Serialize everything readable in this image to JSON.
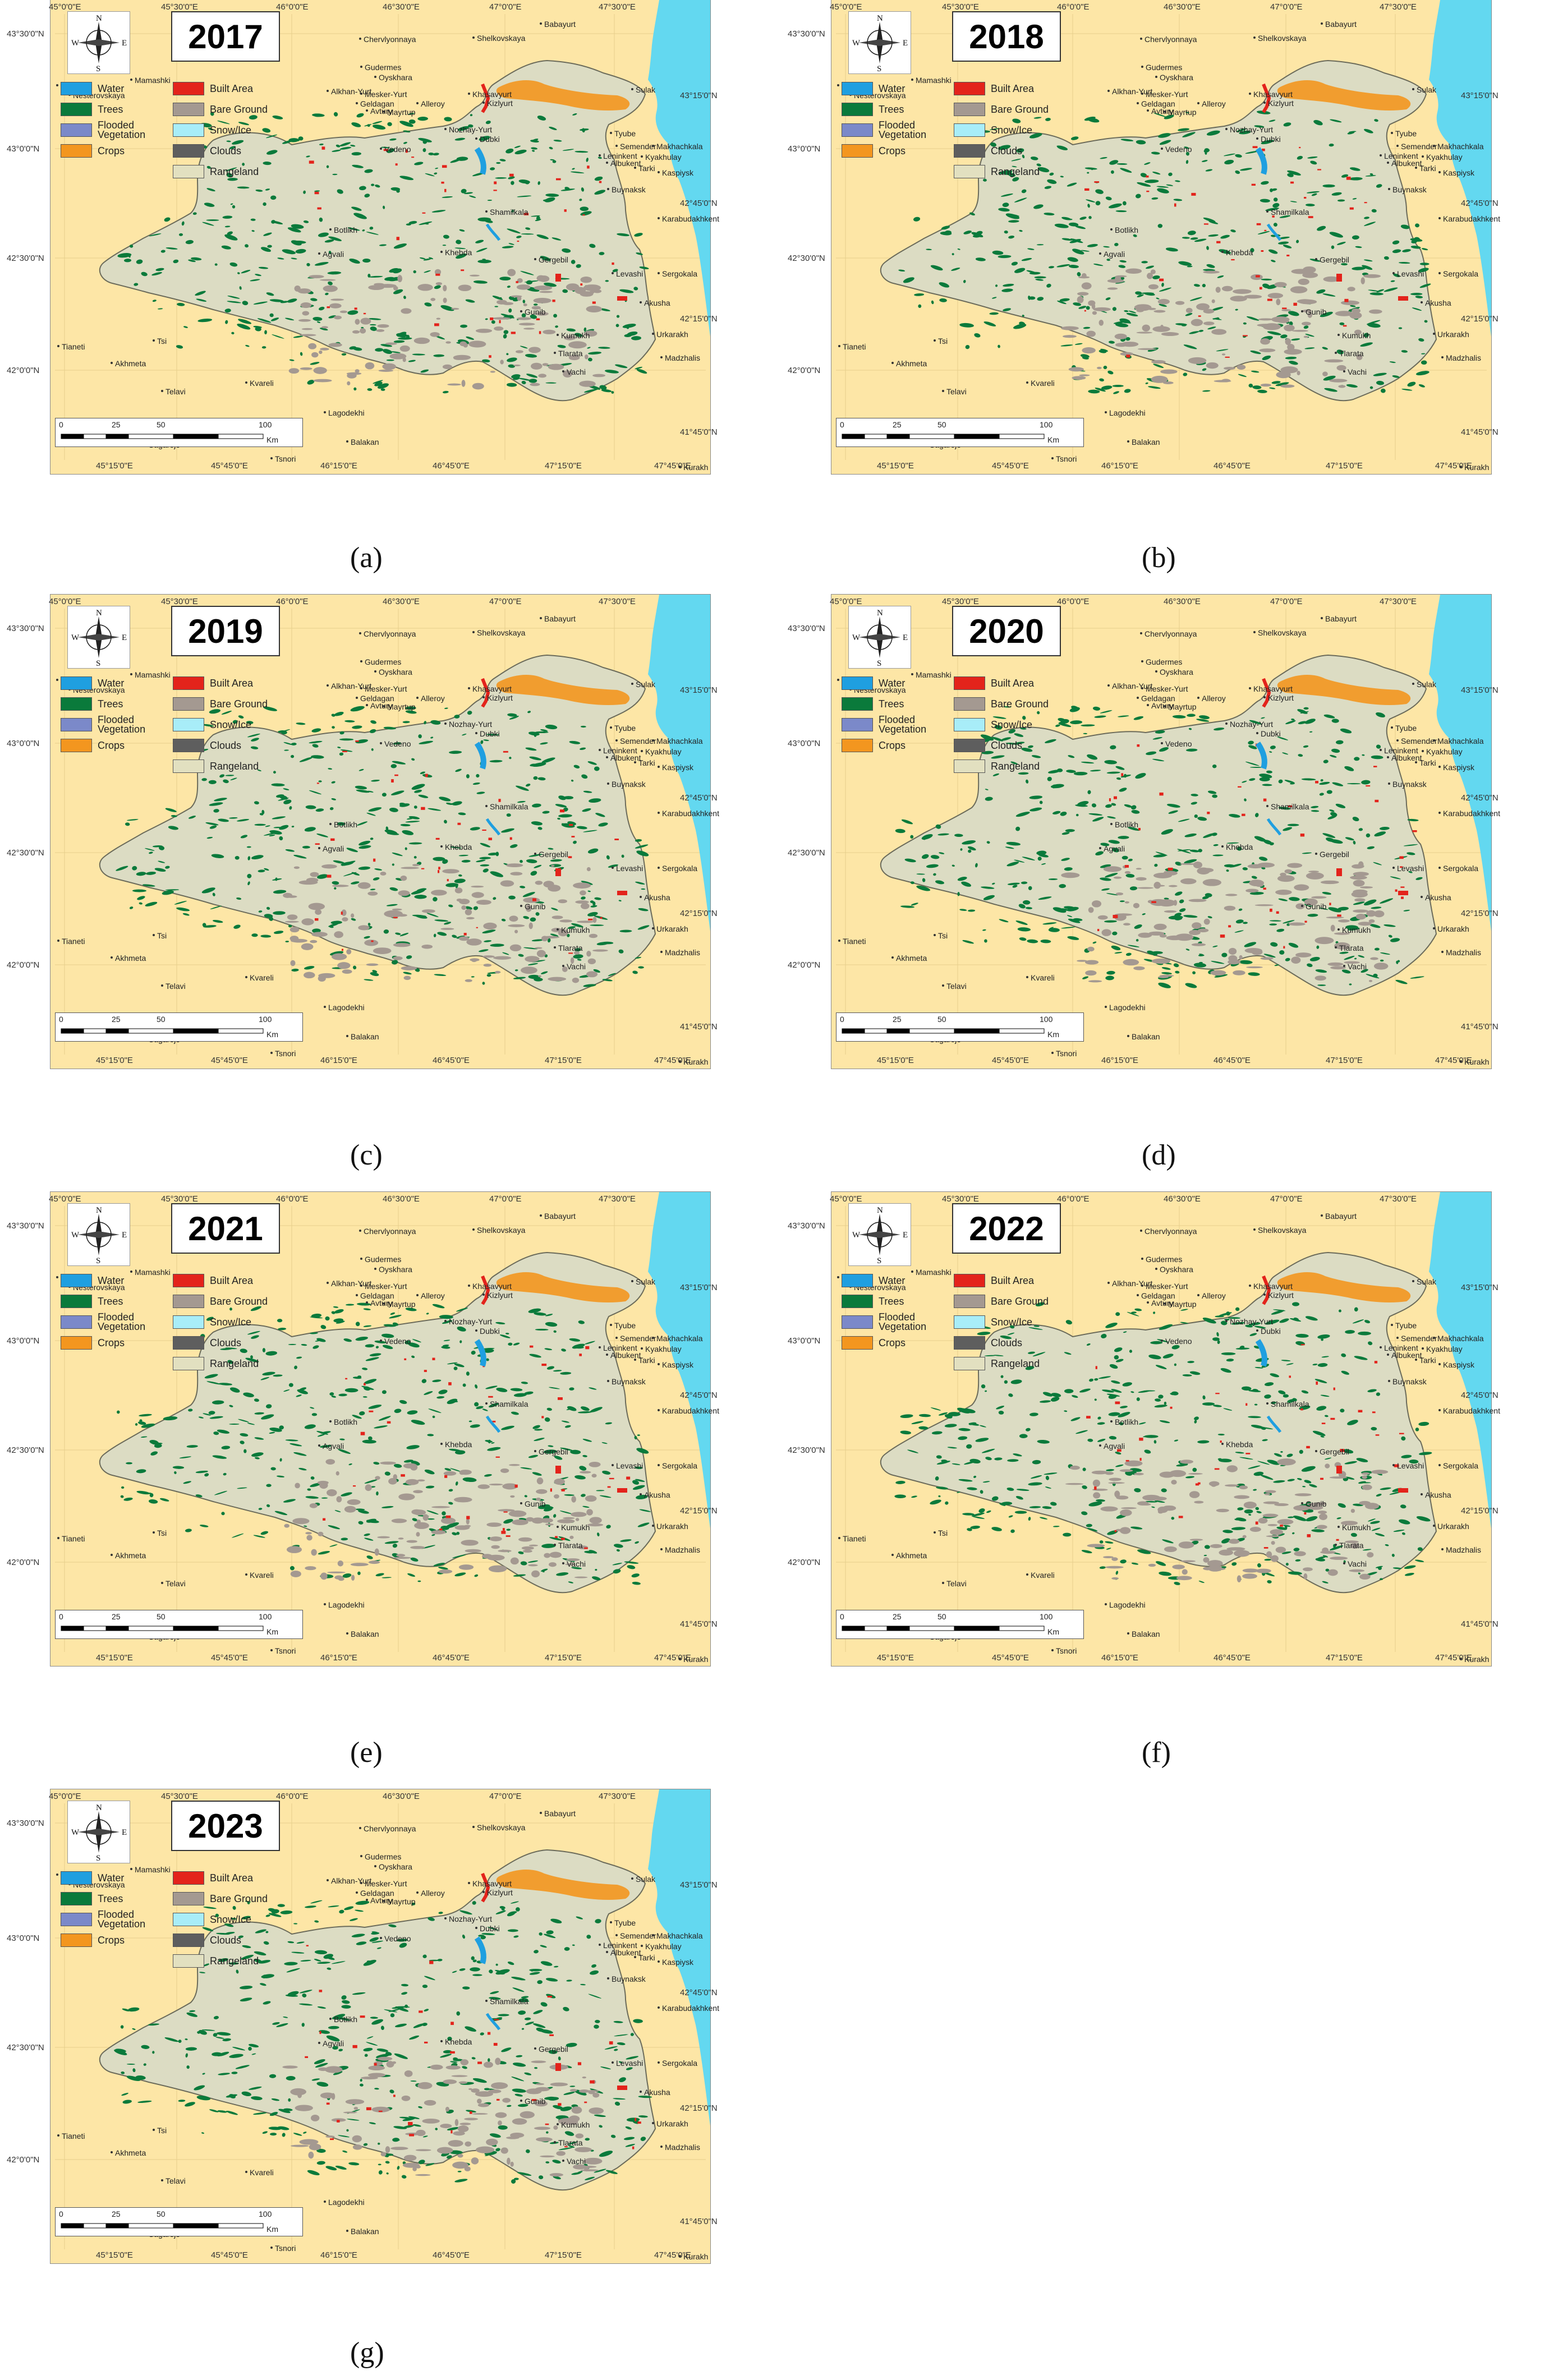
{
  "legend": [
    {
      "label": "Water",
      "color": "#1f9fe0"
    },
    {
      "label": "Trees",
      "color": "#0a7a3b"
    },
    {
      "label": "Flooded\nVegetation",
      "color": "#7b89c9"
    },
    {
      "label": "Crops",
      "color": "#f3961f"
    },
    {
      "label": "Built Area",
      "color": "#e3231b"
    },
    {
      "label": "Bare Ground",
      "color": "#a49991"
    },
    {
      "label": "Snow/Ice",
      "color": "#a8edf8"
    },
    {
      "label": "Clouds",
      "color": "#5e5e5e"
    },
    {
      "label": "Rangeland",
      "color": "#e2e0c0"
    }
  ],
  "colors": {
    "background": "#fde6a6",
    "sea": "#63d8f0",
    "region": "#dcdcc3"
  },
  "top_ticks": [
    "45°0'0\"E",
    "45°30'0\"E",
    "46°0'0\"E",
    "46°30'0\"E",
    "47°0'0\"E",
    "47°30'0\"E"
  ],
  "bottom_ticks": [
    "45°15'0\"E",
    "45°45'0\"E",
    "46°15'0\"E",
    "46°45'0\"E",
    "47°15'0\"E",
    "47°45'0\"E"
  ],
  "left_ticks": [
    "43°30'0\"N",
    "43°0'0\"N",
    "42°30'0\"N",
    "42°0'0\"N"
  ],
  "right_ticks": [
    "43°15'0\"N",
    "42°45'0\"N",
    "42°15'0\"N",
    "41°45'0\"N"
  ],
  "places": [
    "Chervlyonnaya",
    "Shelkovskaya",
    "Babayurt",
    "Gudermes",
    "Oyskhara",
    "Nesterovskaya",
    "Alkhan-Yurt",
    "Mesker-Yurt",
    "Geldagan",
    "Alleroy",
    "Khasavyurt",
    "Kizlyurt",
    "Sulak",
    "Avtury",
    "Mayrtup",
    "Nozhay-Yurt",
    "Vedeno",
    "Dubki",
    "Tyube",
    "Semender",
    "Makhachkala",
    "Leninkent",
    "Kyakhulay",
    "Albukent",
    "Tarki",
    "Kaspiysk",
    "Buynaksk",
    "Karabudakhkent",
    "Shamilkala",
    "Botlikh",
    "Agvali",
    "Khebda",
    "Gergebil",
    "Levashi",
    "Sergokala",
    "Akusha",
    "Gunib",
    "Kumukh",
    "Urkarakh",
    "Madzhalis",
    "Tlarata",
    "Vachi",
    "Tianeti",
    "Akhmeta",
    "Telavi",
    "Kvareli",
    "Lagodekhi",
    "Sagarejo",
    "Gurjaani",
    "Balakan",
    "Tsnori",
    "Kurakh",
    "Tsi",
    "Mamashki",
    "Tbi"
  ],
  "scale": {
    "labels": [
      "0",
      "25",
      "50",
      "100"
    ],
    "unit": "Km"
  },
  "compass": [
    "N",
    "S",
    "W",
    "E"
  ],
  "panels": [
    {
      "year": "2017",
      "caption": "(a)"
    },
    {
      "year": "2018",
      "caption": "(b)"
    },
    {
      "year": "2019",
      "caption": "(c)"
    },
    {
      "year": "2020",
      "caption": "(d)"
    },
    {
      "year": "2021",
      "caption": "(e)"
    },
    {
      "year": "2022",
      "caption": "(f)"
    },
    {
      "year": "2023",
      "caption": "(g)"
    }
  ]
}
